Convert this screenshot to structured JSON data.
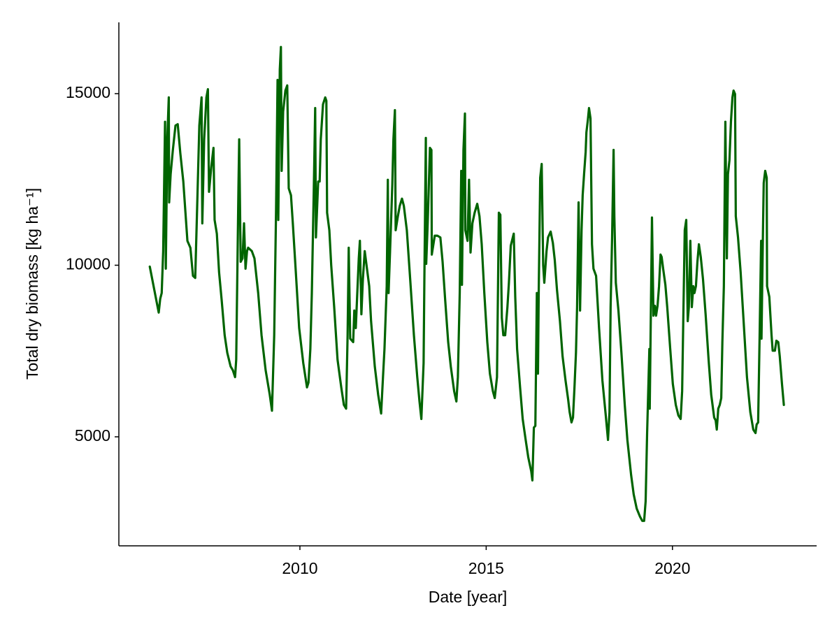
{
  "chart_data": {
    "type": "line",
    "x_label": "Date [year]",
    "y_label": "Total dry biomass [kg ha⁻¹]",
    "color": "#006400",
    "xlim": [
      2005.14,
      2023.87
    ],
    "xticks": [
      2010,
      2015,
      2020
    ],
    "ylim": [
      1823,
      17077
    ],
    "yticks": [
      5000,
      10000,
      15000
    ],
    "grid": false,
    "x": [
      2005.97,
      2006.21,
      2006.25,
      2006.29,
      2006.33,
      2006.38,
      2006.4,
      2006.44,
      2006.48,
      2006.49,
      2006.53,
      2006.59,
      2006.66,
      2006.72,
      2006.79,
      2006.87,
      2006.98,
      2007.06,
      2007.13,
      2007.19,
      2007.24,
      2007.3,
      2007.36,
      2007.38,
      2007.43,
      2007.49,
      2007.53,
      2007.56,
      2007.62,
      2007.68,
      2007.71,
      2007.77,
      2007.83,
      2007.9,
      2007.98,
      2008.05,
      2008.14,
      2008.2,
      2008.26,
      2008.29,
      2008.35,
      2008.37,
      2008.41,
      2008.46,
      2008.5,
      2008.54,
      2008.58,
      2008.61,
      2008.71,
      2008.78,
      2008.88,
      2008.97,
      2009.08,
      2009.19,
      2009.25,
      2009.31,
      2009.36,
      2009.4,
      2009.42,
      2009.46,
      2009.49,
      2009.51,
      2009.55,
      2009.61,
      2009.66,
      2009.7,
      2009.76,
      2009.81,
      2009.89,
      2009.98,
      2010.09,
      2010.19,
      2010.23,
      2010.28,
      2010.32,
      2010.38,
      2010.41,
      2010.43,
      2010.49,
      2010.53,
      2010.56,
      2010.62,
      2010.68,
      2010.71,
      2010.73,
      2010.79,
      2010.84,
      2010.92,
      2011.01,
      2011.11,
      2011.18,
      2011.24,
      2011.28,
      2011.31,
      2011.35,
      2011.43,
      2011.46,
      2011.5,
      2011.54,
      2011.58,
      2011.61,
      2011.65,
      2011.69,
      2011.74,
      2011.8,
      2011.86,
      2011.91,
      2012.01,
      2012.1,
      2012.18,
      2012.23,
      2012.27,
      2012.33,
      2012.36,
      2012.38,
      2012.42,
      2012.48,
      2012.51,
      2012.55,
      2012.57,
      2012.63,
      2012.68,
      2012.74,
      2012.79,
      2012.87,
      2012.96,
      2013.06,
      2013.15,
      2013.21,
      2013.26,
      2013.32,
      2013.34,
      2013.38,
      2013.39,
      2013.43,
      2013.49,
      2013.53,
      2013.54,
      2013.62,
      2013.69,
      2013.77,
      2013.83,
      2013.9,
      2013.98,
      2014.05,
      2014.14,
      2014.2,
      2014.24,
      2014.29,
      2014.33,
      2014.35,
      2014.39,
      2014.43,
      2014.44,
      2014.5,
      2014.54,
      2014.58,
      2014.63,
      2014.69,
      2014.76,
      2014.82,
      2014.88,
      2014.95,
      2015.03,
      2015.1,
      2015.18,
      2015.23,
      2015.29,
      2015.34,
      2015.38,
      2015.42,
      2015.46,
      2015.51,
      2015.57,
      2015.61,
      2015.66,
      2015.74,
      2015.78,
      2015.83,
      2015.91,
      2015.98,
      2016.06,
      2016.13,
      2016.21,
      2016.24,
      2016.28,
      2016.32,
      2016.36,
      2016.39,
      2016.41,
      2016.45,
      2016.49,
      2016.53,
      2016.56,
      2016.62,
      2016.66,
      2016.73,
      2016.79,
      2016.84,
      2016.9,
      2016.98,
      2017.05,
      2017.13,
      2017.2,
      2017.24,
      2017.29,
      2017.33,
      2017.37,
      2017.41,
      2017.44,
      2017.48,
      2017.52,
      2017.56,
      2017.59,
      2017.63,
      2017.67,
      2017.69,
      2017.73,
      2017.76,
      2017.8,
      2017.84,
      2017.88,
      2017.95,
      2018.03,
      2018.12,
      2018.21,
      2018.27,
      2018.31,
      2018.34,
      2018.38,
      2018.42,
      2018.44,
      2018.48,
      2018.55,
      2018.63,
      2018.72,
      2018.79,
      2018.89,
      2018.96,
      2019.04,
      2019.13,
      2019.19,
      2019.24,
      2019.28,
      2019.32,
      2019.38,
      2019.39,
      2019.45,
      2019.49,
      2019.53,
      2019.56,
      2019.6,
      2019.64,
      2019.68,
      2019.71,
      2019.75,
      2019.81,
      2019.86,
      2019.94,
      2020.01,
      2020.09,
      2020.16,
      2020.22,
      2020.26,
      2020.29,
      2020.33,
      2020.37,
      2020.41,
      2020.44,
      2020.48,
      2020.52,
      2020.56,
      2020.59,
      2020.63,
      2020.67,
      2020.71,
      2020.76,
      2020.82,
      2020.89,
      2020.97,
      2021.04,
      2021.12,
      2021.16,
      2021.19,
      2021.23,
      2021.27,
      2021.31,
      2021.34,
      2021.38,
      2021.42,
      2021.46,
      2021.49,
      2021.53,
      2021.57,
      2021.61,
      2021.64,
      2021.68,
      2021.7,
      2021.76,
      2021.83,
      2021.91,
      2022.0,
      2022.09,
      2022.17,
      2022.23,
      2022.26,
      2022.3,
      2022.34,
      2022.38,
      2022.39,
      2022.43,
      2022.45,
      2022.49,
      2022.53,
      2022.54,
      2022.6,
      2022.66,
      2022.69,
      2022.75,
      2022.79,
      2022.84,
      2022.88,
      2022.94,
      2022.99
    ],
    "values": [
      9960,
      8620,
      9020,
      9190,
      10410,
      14180,
      9900,
      13670,
      14890,
      11830,
      12650,
      13360,
      14070,
      14110,
      13260,
      12440,
      10710,
      10510,
      9690,
      9630,
      11630,
      14070,
      14890,
      11220,
      13670,
      14890,
      15130,
      12140,
      12850,
      13420,
      11320,
      10920,
      9800,
      8980,
      7960,
      7450,
      7050,
      6940,
      6740,
      7250,
      12240,
      13670,
      10100,
      10200,
      11220,
      9900,
      10410,
      10510,
      10410,
      10200,
      9190,
      7960,
      6940,
      6230,
      5760,
      7960,
      11630,
      15400,
      11320,
      15700,
      16360,
      12750,
      14480,
      15090,
      15240,
      12240,
      12040,
      11220,
      9800,
      8170,
      7150,
      6440,
      6580,
      7560,
      9190,
      12650,
      14580,
      10810,
      12440,
      12440,
      13670,
      14690,
      14890,
      14790,
      11530,
      11020,
      10000,
      8780,
      7250,
      6440,
      5930,
      5820,
      7960,
      10510,
      7860,
      7760,
      8680,
      8170,
      9190,
      10200,
      10710,
      8570,
      9590,
      10410,
      9900,
      9390,
      8370,
      7050,
      6230,
      5680,
      6740,
      7560,
      9390,
      12490,
      9190,
      10410,
      12340,
      13670,
      14520,
      11020,
      11430,
      11730,
      11940,
      11730,
      11020,
      9590,
      7960,
      6740,
      6030,
      5520,
      7150,
      9490,
      13710,
      10040,
      11220,
      13420,
      13360,
      10310,
      10860,
      10860,
      10810,
      10100,
      8980,
      7760,
      7050,
      6330,
      6030,
      6740,
      9190,
      12750,
      9430,
      13360,
      14420,
      11020,
      10710,
      12490,
      10370,
      11220,
      11530,
      11790,
      11430,
      10610,
      9190,
      7760,
      6840,
      6330,
      6130,
      6740,
      11530,
      11470,
      8470,
      7960,
      7960,
      8780,
      9490,
      10570,
      10920,
      9080,
      7560,
      6440,
      5520,
      4910,
      4400,
      3990,
      3730,
      5270,
      5320,
      9190,
      6840,
      9190,
      12550,
      12950,
      10000,
      9490,
      10410,
      10810,
      10980,
      10650,
      10160,
      9290,
      8370,
      7350,
      6640,
      6090,
      5720,
      5420,
      5560,
      6440,
      7450,
      8780,
      11830,
      8680,
      11020,
      12040,
      12690,
      13300,
      13870,
      14240,
      14580,
      14280,
      10610,
      9900,
      9690,
      8170,
      6640,
      5620,
      4910,
      5720,
      8780,
      10810,
      13360,
      11430,
      9490,
      8680,
      7450,
      5930,
      4910,
      3890,
      3320,
      2910,
      2670,
      2550,
      2550,
      3120,
      5110,
      7560,
      5820,
      11390,
      8530,
      8820,
      8530,
      8820,
      9390,
      10310,
      10240,
      9900,
      9430,
      8780,
      7560,
      6540,
      5930,
      5620,
      5520,
      6330,
      8370,
      11020,
      11320,
      8370,
      8780,
      10710,
      8780,
      9390,
      9190,
      9390,
      10100,
      10610,
      10240,
      9590,
      8570,
      7250,
      6230,
      5560,
      5480,
      5210,
      5820,
      5930,
      6130,
      7760,
      9390,
      14180,
      10200,
      12650,
      13060,
      14180,
      14890,
      15090,
      14990,
      11430,
      10810,
      9800,
      8370,
      6740,
      5720,
      5210,
      5110,
      5360,
      5420,
      7960,
      10710,
      7860,
      11020,
      12400,
      12750,
      12550,
      9390,
      9080,
      7960,
      7510,
      7510,
      7800,
      7760,
      7350,
      6540,
      5930
    ]
  }
}
